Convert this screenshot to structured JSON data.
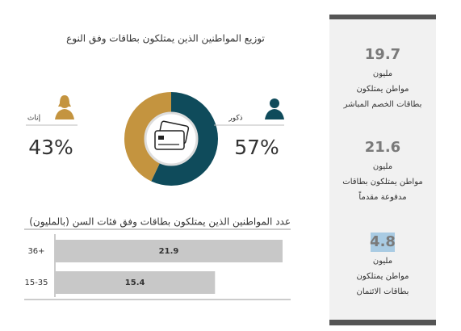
{
  "chart_data": [
    {
      "type": "pie",
      "title": "توزيع المواطنين الذين يمتلكون بطاقات وفق النوع",
      "categories": [
        "ذكور",
        "إناث"
      ],
      "values": [
        57,
        43
      ],
      "value_labels": [
        "57%",
        "43%"
      ],
      "colors": [
        "#0f4b5b",
        "#c4943f"
      ]
    },
    {
      "type": "bar",
      "orientation": "horizontal",
      "title": "عدد المواطنين الذين  يمتلكون بطاقات وفق فئات السن (بالمليون)",
      "categories": [
        "36+",
        "15-35"
      ],
      "values": [
        21.9,
        15.4
      ],
      "color": "#c8c8c8"
    }
  ],
  "stats": [
    {
      "value": 19.7,
      "lines": [
        "مليون",
        "مواطن يمتلكون",
        "بطاقات الخصم المباشر"
      ]
    },
    {
      "value": 21.6,
      "lines": [
        "مليون",
        "مواطن يمتلكون بطاقات",
        "مدفوعة مقدماً"
      ]
    },
    {
      "value": 4.8,
      "lines": [
        "مليون",
        "مواطن يمتلكون",
        "بطاقات الائتمان"
      ],
      "highlight": "#a9cbe3"
    }
  ]
}
